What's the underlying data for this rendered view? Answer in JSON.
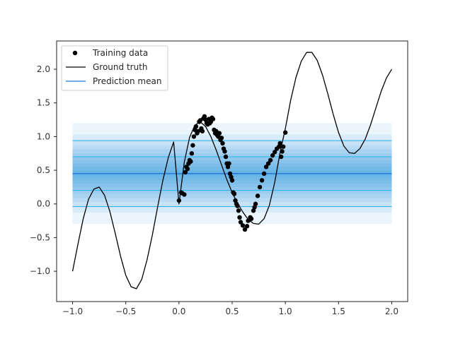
{
  "chart_data": {
    "type": "line",
    "title": "",
    "xlabel": "",
    "ylabel": "",
    "xlim": [
      -1.15,
      2.15
    ],
    "ylim": [
      -1.45,
      2.42
    ],
    "grid": false,
    "legend_position": "top-left",
    "x_ticks": [
      -1.0,
      -0.5,
      0.0,
      0.5,
      1.0,
      1.5,
      2.0
    ],
    "x_tick_labels": [
      "−1.0",
      "−0.5",
      "0.0",
      "0.5",
      "1.0",
      "1.5",
      "2.0"
    ],
    "y_ticks": [
      -1.0,
      -0.5,
      0.0,
      0.5,
      1.0,
      1.5,
      2.0
    ],
    "y_tick_labels": [
      "−1.0",
      "−0.5",
      "0.0",
      "0.5",
      "1.0",
      "1.5",
      "2.0"
    ],
    "legend": [
      {
        "label": "Training data",
        "kind": "marker",
        "color": "#000000"
      },
      {
        "label": "Ground truth",
        "kind": "line",
        "color": "#000000"
      },
      {
        "label": "Prediction mean",
        "kind": "line",
        "color": "#1f77d8"
      }
    ],
    "series": [
      {
        "name": "Ground truth",
        "kind": "line",
        "color": "#000000",
        "x": [
          -1.0,
          -0.95,
          -0.9,
          -0.85,
          -0.8,
          -0.75,
          -0.7,
          -0.65,
          -0.6,
          -0.55,
          -0.5,
          -0.45,
          -0.4,
          -0.35,
          -0.3,
          -0.25,
          -0.2,
          -0.15,
          -0.1,
          -0.05,
          0.0,
          0.05,
          0.1,
          0.15,
          0.2,
          0.25,
          0.3,
          0.35,
          0.4,
          0.45,
          0.5,
          0.55,
          0.6,
          0.65,
          0.7,
          0.75,
          0.8,
          0.85,
          0.9,
          0.95,
          1.0,
          1.05,
          1.1,
          1.15,
          1.2,
          1.25,
          1.3,
          1.35,
          1.4,
          1.45,
          1.5,
          1.55,
          1.6,
          1.65,
          1.7,
          1.75,
          1.8,
          1.85,
          1.9,
          1.95,
          2.0
        ],
        "y": [
          -1.0,
          -0.6,
          -0.22,
          0.07,
          0.22,
          0.25,
          0.13,
          -0.11,
          -0.43,
          -0.77,
          -1.06,
          -1.23,
          -1.26,
          -1.12,
          -0.83,
          -0.46,
          -0.04,
          0.36,
          0.69,
          0.92,
          0.0,
          0.62,
          0.99,
          1.17,
          1.22,
          1.15,
          1.0,
          0.8,
          0.58,
          0.36,
          0.17,
          0.01,
          -0.12,
          -0.23,
          -0.29,
          -0.3,
          -0.22,
          -0.02,
          0.32,
          0.76,
          1.12,
          1.54,
          1.88,
          2.12,
          2.25,
          2.25,
          2.13,
          1.91,
          1.63,
          1.33,
          1.06,
          0.86,
          0.76,
          0.75,
          0.82,
          0.96,
          1.17,
          1.42,
          1.67,
          1.87,
          2.0
        ]
      },
      {
        "name": "Training data",
        "kind": "scatter",
        "color": "#000000",
        "x": [
          0.0,
          0.02,
          0.03,
          0.05,
          0.06,
          0.07,
          0.08,
          0.09,
          0.1,
          0.11,
          0.12,
          0.13,
          0.14,
          0.15,
          0.16,
          0.17,
          0.18,
          0.19,
          0.2,
          0.21,
          0.22,
          0.23,
          0.24,
          0.25,
          0.26,
          0.27,
          0.28,
          0.29,
          0.3,
          0.31,
          0.32,
          0.33,
          0.34,
          0.35,
          0.36,
          0.37,
          0.38,
          0.39,
          0.4,
          0.41,
          0.42,
          0.43,
          0.44,
          0.45,
          0.46,
          0.47,
          0.48,
          0.49,
          0.5,
          0.51,
          0.52,
          0.53,
          0.54,
          0.55,
          0.56,
          0.57,
          0.58,
          0.6,
          0.62,
          0.64,
          0.65,
          0.67,
          0.68,
          0.7,
          0.71,
          0.72,
          0.74,
          0.76,
          0.78,
          0.8,
          0.82,
          0.84,
          0.86,
          0.88,
          0.9,
          0.92,
          0.94,
          0.95,
          0.96,
          0.97,
          0.98,
          1.0
        ],
        "y": [
          0.05,
          0.17,
          0.16,
          0.14,
          0.47,
          0.55,
          0.52,
          0.6,
          0.65,
          0.63,
          0.75,
          0.87,
          1.0,
          1.1,
          1.15,
          1.05,
          1.08,
          1.22,
          1.24,
          1.12,
          1.08,
          1.27,
          1.3,
          1.25,
          1.2,
          1.18,
          1.26,
          1.2,
          1.22,
          1.28,
          1.26,
          1.1,
          1.05,
          1.08,
          1.02,
          1.0,
          1.05,
          0.95,
          0.98,
          0.9,
          0.82,
          0.78,
          0.7,
          0.6,
          0.55,
          0.6,
          0.45,
          0.4,
          0.35,
          0.17,
          0.15,
          0.05,
          0.0,
          -0.03,
          -0.1,
          -0.2,
          -0.27,
          -0.32,
          -0.38,
          -0.33,
          -0.25,
          -0.2,
          -0.22,
          -0.1,
          -0.05,
          0.0,
          0.12,
          0.25,
          0.35,
          0.45,
          0.55,
          0.6,
          0.65,
          0.72,
          0.77,
          0.82,
          0.85,
          0.9,
          0.7,
          0.78,
          0.85,
          1.06
        ]
      },
      {
        "name": "Prediction mean",
        "kind": "hline",
        "color": "#1f77d8",
        "x": [
          -1.0,
          2.0
        ],
        "y": [
          0.45,
          0.45
        ]
      }
    ],
    "uncertainty_bands": {
      "color": "#1f8ee0",
      "x": [
        -1.0,
        2.0
      ],
      "center": 0.45,
      "half_widths": [
        0.75,
        0.58,
        0.5,
        0.42,
        0.36,
        0.3,
        0.25,
        0.2,
        0.15,
        0.1,
        0.05,
        0.02
      ],
      "outline_half_widths": [
        0.49,
        0.25
      ]
    }
  }
}
